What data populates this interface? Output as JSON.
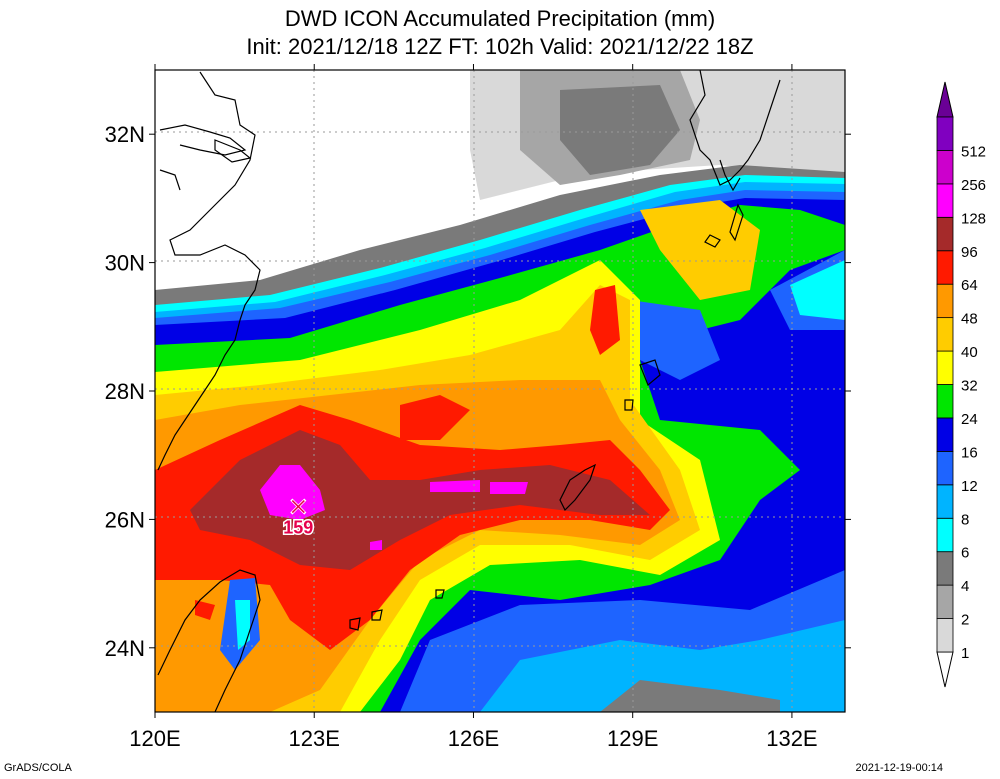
{
  "title": {
    "line1": "DWD ICON Accumulated Precipitation (mm)",
    "line2": "Init: 2021/12/18 12Z  FT: 102h  Valid: 2021/12/22 18Z"
  },
  "axes": {
    "lat_labels": [
      "32N",
      "30N",
      "28N",
      "26N",
      "24N"
    ],
    "lon_labels": [
      "120E",
      "123E",
      "126E",
      "129E",
      "132E"
    ],
    "lat_values": [
      32,
      30,
      28,
      26,
      24
    ],
    "lon_values": [
      120,
      123,
      126,
      129,
      132
    ],
    "lat_range": [
      23,
      33
    ],
    "lon_range": [
      120,
      133
    ]
  },
  "max_marker": {
    "label": "159",
    "lat": 26.2,
    "lon": 122.7
  },
  "colorbar": [
    {
      "label": "1",
      "color": "#d9d9d9"
    },
    {
      "label": "2",
      "color": "#a6a6a6"
    },
    {
      "label": "4",
      "color": "#7a7a7a"
    },
    {
      "label": "6",
      "color": "#00ffff"
    },
    {
      "label": "8",
      "color": "#00b4ff"
    },
    {
      "label": "12",
      "color": "#1e64ff"
    },
    {
      "label": "16",
      "color": "#0000e6"
    },
    {
      "label": "24",
      "color": "#00e600"
    },
    {
      "label": "32",
      "color": "#ffff00"
    },
    {
      "label": "40",
      "color": "#ffcc00"
    },
    {
      "label": "48",
      "color": "#ff9900"
    },
    {
      "label": "64",
      "color": "#ff1a00"
    },
    {
      "label": "96",
      "color": "#a52a2a"
    },
    {
      "label": "128",
      "color": "#ff00ff"
    },
    {
      "label": "256",
      "color": "#cc00cc"
    },
    {
      "label": "512",
      "color": "#8000c0"
    }
  ],
  "top_arrow_color": "#6a0096",
  "footer": {
    "left": "GrADS/COLA",
    "right": "2021-12-19-00:14"
  }
}
